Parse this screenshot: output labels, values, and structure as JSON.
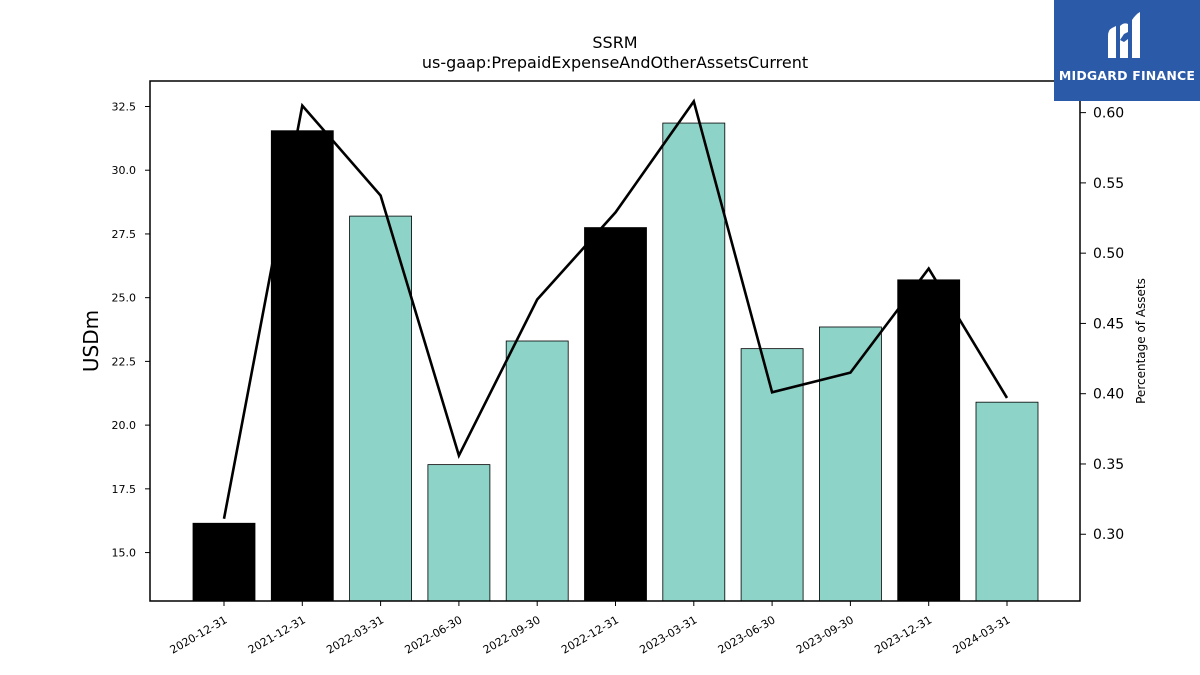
{
  "chart_data": {
    "type": "bar+line",
    "title": "SSRM",
    "subtitle": "us-gaap:PrepaidExpenseAndOtherAssetsCurrent",
    "ylabel": "USDm",
    "y2label": "Percentage of Assets",
    "categories": [
      "2020-12-31",
      "2021-12-31",
      "2022-03-31",
      "2022-06-30",
      "2022-09-30",
      "2022-12-31",
      "2023-03-31",
      "2023-06-30",
      "2023-09-30",
      "2023-12-31",
      "2024-03-31"
    ],
    "bar_values": [
      16.15,
      31.55,
      28.2,
      18.45,
      23.3,
      27.75,
      31.85,
      23.0,
      23.85,
      25.7,
      20.9
    ],
    "bar_colors": [
      "#000000",
      "#000000",
      "#8dd3c7",
      "#8dd3c7",
      "#8dd3c7",
      "#000000",
      "#8dd3c7",
      "#8dd3c7",
      "#8dd3c7",
      "#000000",
      "#8dd3c7"
    ],
    "line_values": [
      0.311,
      0.605,
      0.541,
      0.356,
      0.467,
      0.529,
      0.608,
      0.401,
      0.415,
      0.489,
      0.397
    ],
    "ylim": [
      13.1,
      33.5
    ],
    "y2lim": [
      0.2525,
      0.6225
    ],
    "yticks": [
      "15.0",
      "17.5",
      "20.0",
      "22.5",
      "25.0",
      "27.5",
      "30.0",
      "32.5"
    ],
    "y2ticks": [
      "0.30",
      "0.35",
      "0.40",
      "0.45",
      "0.50",
      "0.55",
      "0.60"
    ],
    "grid": false,
    "legend": "none"
  },
  "logo": {
    "text": "MIDGARD FINANCE"
  }
}
